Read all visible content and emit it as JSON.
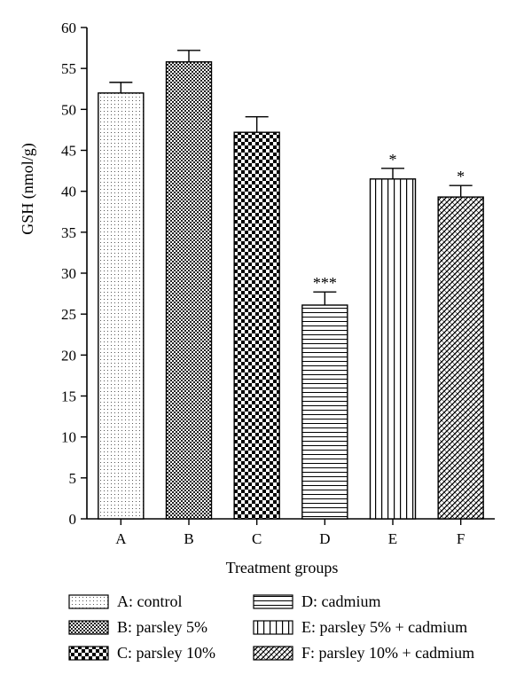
{
  "chart_data": {
    "type": "bar",
    "categories": [
      "A",
      "B",
      "C",
      "D",
      "E",
      "F"
    ],
    "values": [
      52.0,
      55.8,
      47.2,
      26.1,
      41.5,
      39.3
    ],
    "errors": [
      1.3,
      1.4,
      1.9,
      1.6,
      1.3,
      1.4
    ],
    "significance": [
      "",
      "",
      "",
      "***",
      "*",
      "*"
    ],
    "xlabel": "Treatment groups",
    "ylabel": "GSH (nmol/g)",
    "ylim": [
      0,
      60
    ],
    "yticks": [
      "0",
      "5",
      "10",
      "15",
      "20",
      "25",
      "30",
      "35",
      "40",
      "45",
      "50",
      "55",
      "60"
    ],
    "grid": false,
    "legend_position": "bottom",
    "legend": [
      {
        "key": "A",
        "label": "A: control",
        "pattern": "dots"
      },
      {
        "key": "B",
        "label": "B: parsley 5%",
        "pattern": "fine-check"
      },
      {
        "key": "C",
        "label": "C: parsley 10%",
        "pattern": "checker"
      },
      {
        "key": "D",
        "label": "D: cadmium",
        "pattern": "horizontal-lines"
      },
      {
        "key": "E",
        "label": "E: parsley 5% + cadmium",
        "pattern": "vertical-lines"
      },
      {
        "key": "F",
        "label": "F: parsley 10% + cadmium",
        "pattern": "diagonal-crosshatch"
      }
    ]
  }
}
